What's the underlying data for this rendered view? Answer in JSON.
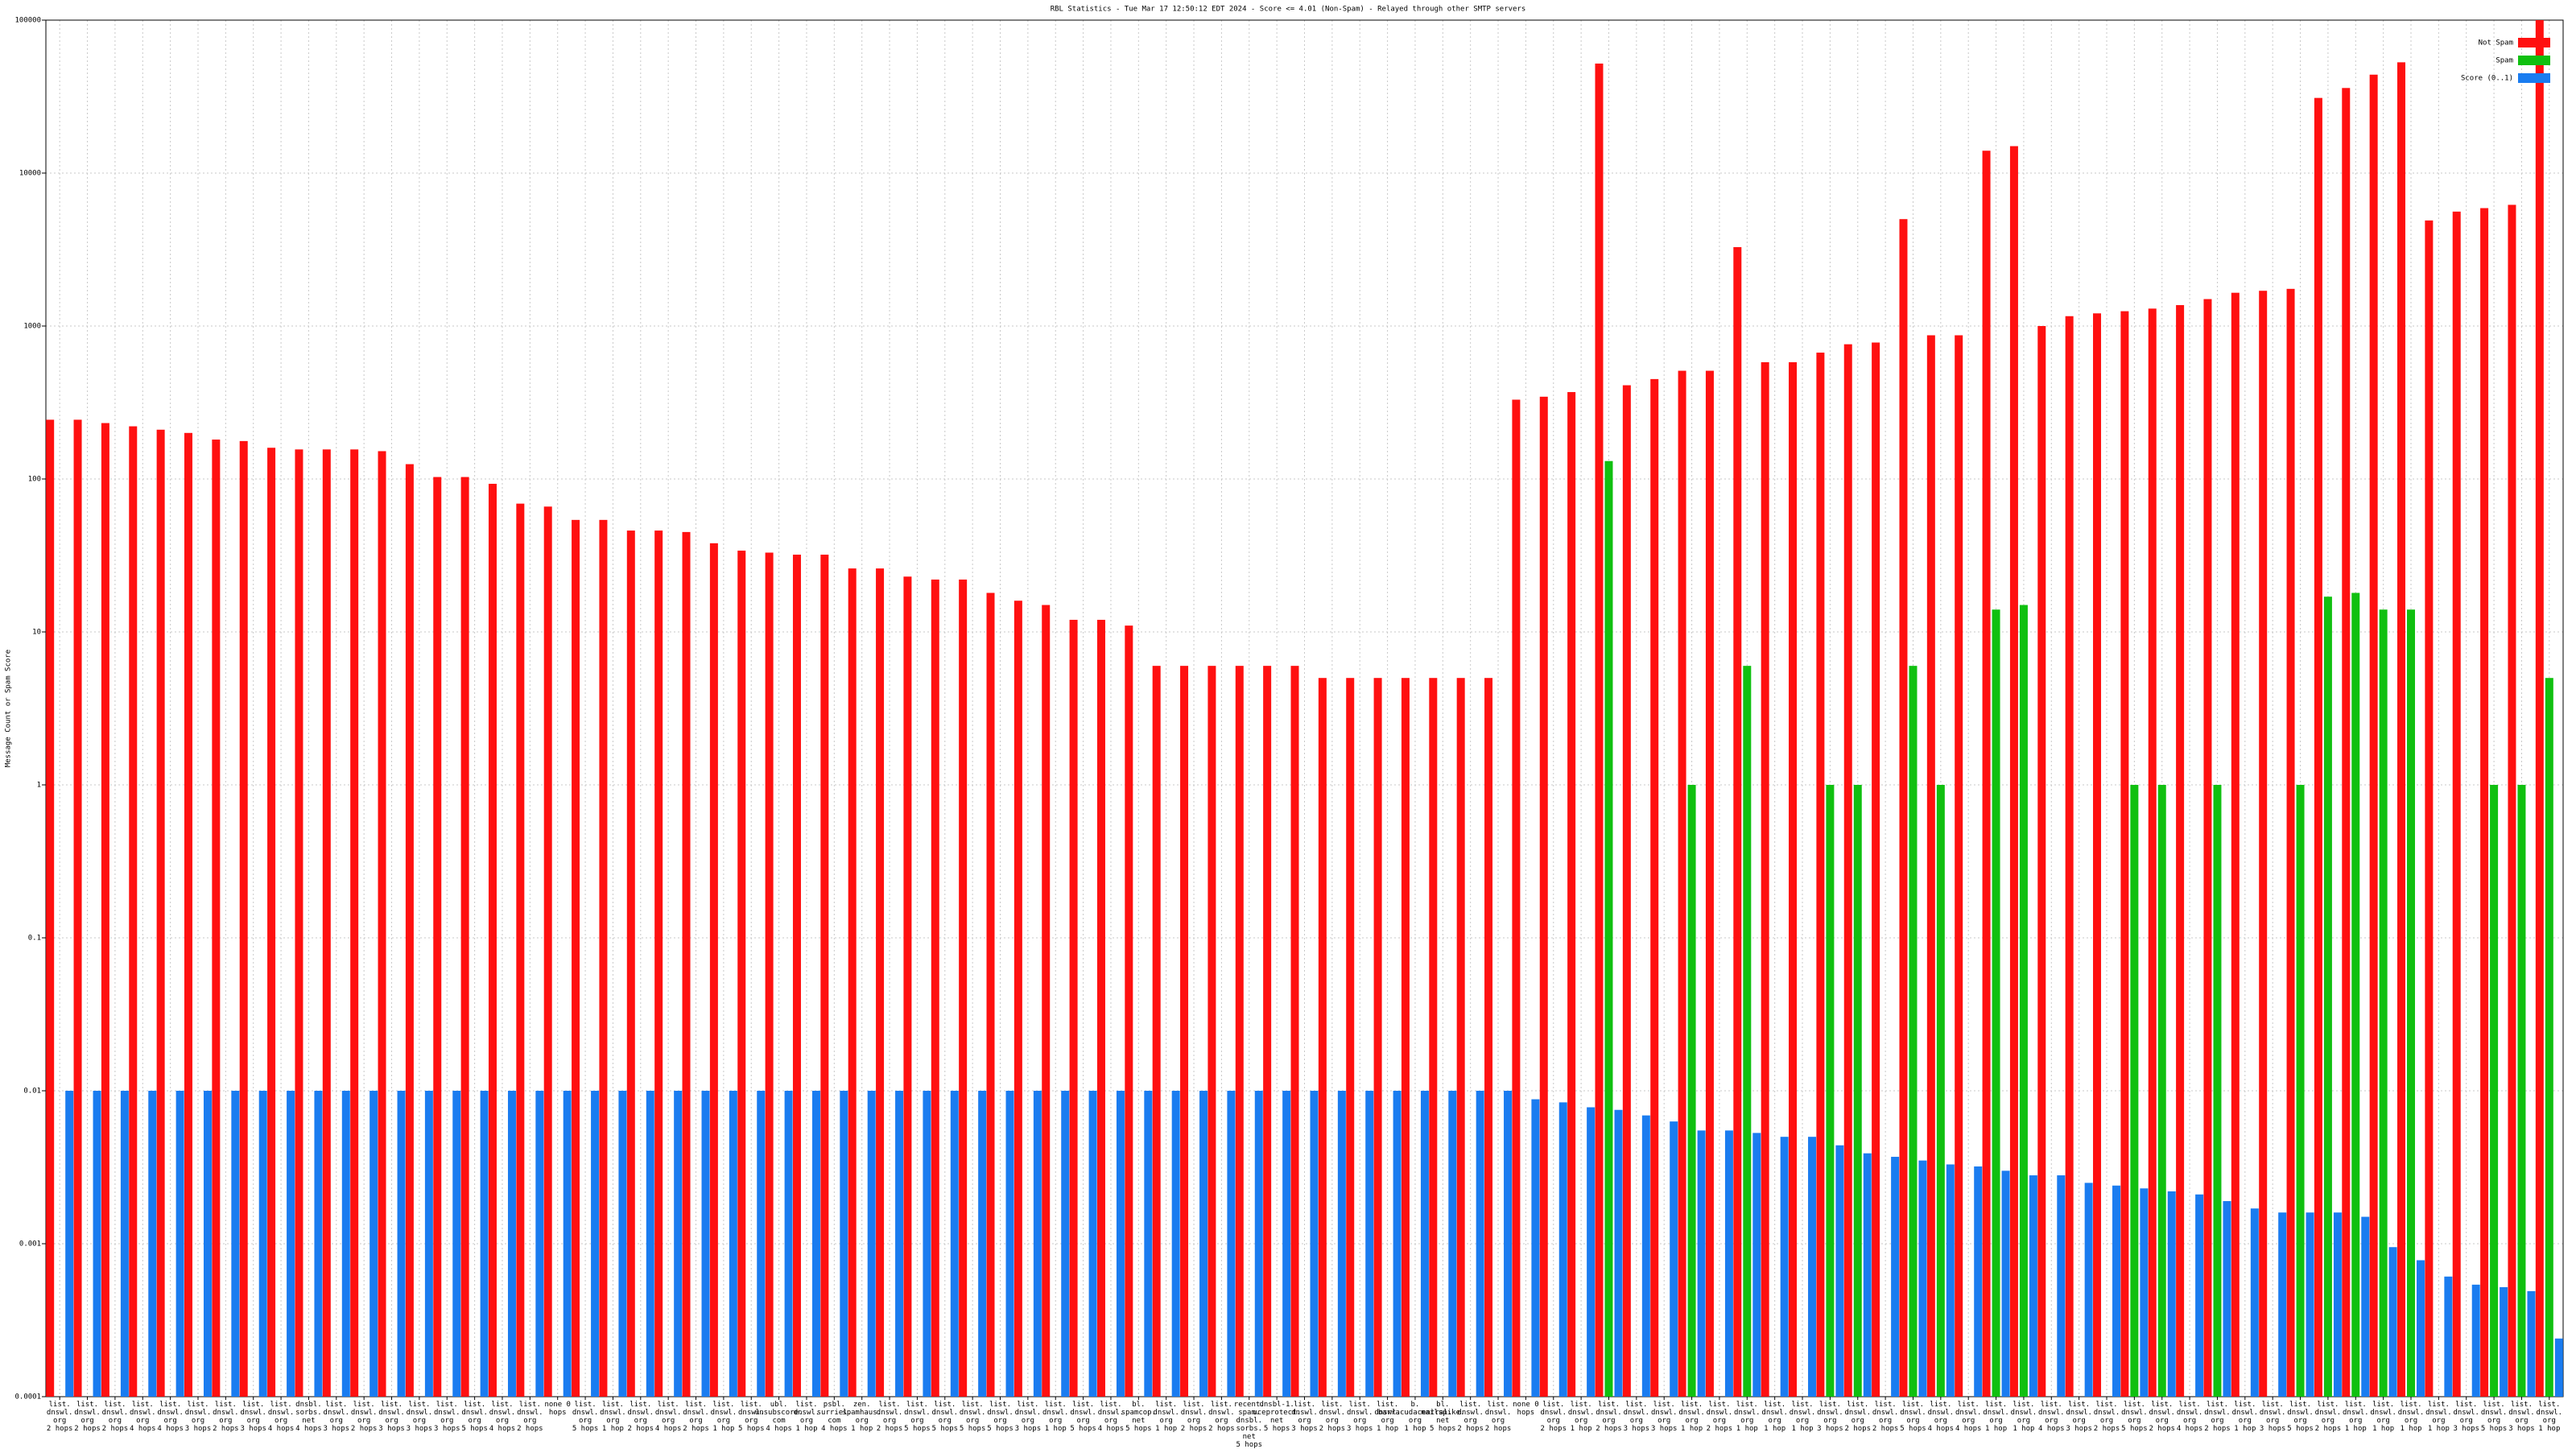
{
  "chart_data": {
    "type": "bar",
    "title": "RBL Statistics - Tue Mar 17 12:50:12 EDT 2024 - Score <= 4.01 (Non-Spam) - Relayed through other SMTP servers",
    "y_label": "Message Count or Spam Score",
    "log_scale": true,
    "grid": true,
    "legend": "top-right",
    "ylim": [
      0.0001,
      100000
    ],
    "yticks": [
      0.0001,
      0.001,
      0.01,
      0.1,
      1,
      10,
      100,
      1000,
      10000,
      100000
    ],
    "categories": [
      "list.dnswl.org 2 hops",
      "list.dnswl.org 2 hops",
      "list.dnswl.org 2 hops",
      "list.dnswl.org 4 hops",
      "list.dnswl.org 4 hops",
      "list.dnswl.org 3 hops",
      "list.dnswl.org 2 hops",
      "list.dnswl.org 3 hops",
      "list.dnswl.org 4 hops",
      "dnsbl.sorbs.net 4 hops",
      "list.dnswl.org 3 hops",
      "list.dnswl.org 2 hops",
      "list.dnswl.org 3 hops",
      "list.dnswl.org 3 hops",
      "list.dnswl.org 3 hops",
      "list.dnswl.org 5 hops",
      "list.dnswl.org 4 hops",
      "list.dnswl.org 2 hops",
      "none 0 hops",
      "list.dnswl.org 5 hops",
      "list.dnswl.org 1 hop",
      "list.dnswl.org 2 hops",
      "list.dnswl.org 4 hops",
      "list.dnswl.org 2 hops",
      "list.dnswl.org 1 hop",
      "list.dnswl.org 5 hops",
      "ubl.unsubscore.com 4 hops",
      "list.dnswl.org 1 hop",
      "psbl.surriel.com 4 hops",
      "zen.spamhaus.org 1 hop",
      "list.dnswl.org 2 hops",
      "list.dnswl.org 5 hops",
      "list.dnswl.org 5 hops",
      "list.dnswl.org 5 hops",
      "list.dnswl.org 5 hops",
      "list.dnswl.org 3 hops",
      "list.dnswl.org 1 hop",
      "list.dnswl.org 5 hops",
      "list.dnswl.org 4 hops",
      "bl.spamcop.net 5 hops",
      "list.dnswl.org 1 hop",
      "list.dnswl.org 2 hops",
      "list.dnswl.org 2 hops",
      "recent.spam.dnsbl.sorbs.net 5 hops",
      "dnsbl-1.uceprotect.net 5 hops",
      "list.dnswl.org 3 hops",
      "list.dnswl.org 2 hops",
      "list.dnswl.org 3 hops",
      "list.dnswl.org 1 hop",
      "b.barracudacentral.org 1 hop",
      "bl.mailspike.net 5 hops",
      "list.dnswl.org 2 hops",
      "list.dnswl.org 2 hops",
      "none 0 hops",
      "list.dnswl.org 2 hops",
      "list.dnswl.org 1 hop",
      "list.dnswl.org 2 hops",
      "list.dnswl.org 3 hops",
      "list.dnswl.org 3 hops",
      "list.dnswl.org 1 hop",
      "list.dnswl.org 2 hops",
      "list.dnswl.org 1 hop",
      "list.dnswl.org 1 hop",
      "list.dnswl.org 1 hop",
      "list.dnswl.org 3 hops",
      "list.dnswl.org 2 hops",
      "list.dnswl.org 2 hops",
      "list.dnswl.org 5 hops",
      "list.dnswl.org 4 hops",
      "list.dnswl.org 4 hops",
      "list.dnswl.org 1 hop",
      "list.dnswl.org 1 hop",
      "list.dnswl.org 4 hops",
      "list.dnswl.org 3 hops",
      "list.dnswl.org 2 hops",
      "list.dnswl.org 5 hops",
      "list.dnswl.org 2 hops",
      "list.dnswl.org 4 hops",
      "list.dnswl.org 2 hops",
      "list.dnswl.org 1 hop",
      "list.dnswl.org 3 hops",
      "list.dnswl.org 5 hops",
      "list.dnswl.org 2 hops",
      "list.dnswl.org 1 hop",
      "list.dnswl.org 1 hop",
      "list.dnswl.org 1 hop",
      "list.dnswl.org 1 hop",
      "list.dnswl.org 3 hops",
      "list.dnswl.org 5 hops",
      "list.dnswl.org 3 hops",
      "list.dnswl.org 1 hop"
    ],
    "series": [
      {
        "name": "Not Spam",
        "color": "#ff1010",
        "values": [
          244,
          244,
          232,
          221,
          210,
          200,
          181,
          177,
          160,
          156,
          156,
          156,
          152,
          125,
          103,
          103,
          93,
          69,
          66,
          54,
          54,
          46,
          46,
          45,
          38,
          34,
          33,
          32,
          32,
          26,
          26,
          23,
          22,
          22,
          18,
          16,
          15,
          12,
          12,
          11,
          6,
          6,
          6,
          6,
          6,
          6,
          5,
          5,
          5,
          5,
          5,
          5,
          5,
          330,
          345,
          370,
          52000,
          410,
          450,
          510,
          510,
          3280,
          580,
          580,
          670,
          760,
          780,
          5000,
          870,
          870,
          14000,
          15000,
          1000,
          1160,
          1210,
          1250,
          1300,
          1370,
          1500,
          1650,
          1700,
          1750,
          31000,
          36000,
          44000,
          53000,
          4900,
          5600,
          5900,
          6200,
          100000
        ]
      },
      {
        "name": "Spam",
        "color": "#10c010",
        "values": [
          null,
          null,
          null,
          null,
          null,
          null,
          null,
          null,
          null,
          null,
          null,
          null,
          null,
          null,
          null,
          null,
          null,
          null,
          null,
          null,
          null,
          null,
          null,
          null,
          null,
          null,
          null,
          null,
          null,
          null,
          null,
          null,
          null,
          null,
          null,
          null,
          null,
          null,
          null,
          null,
          null,
          null,
          null,
          null,
          null,
          null,
          null,
          null,
          null,
          null,
          null,
          null,
          null,
          null,
          null,
          null,
          131,
          null,
          null,
          1,
          null,
          6,
          null,
          null,
          1,
          1,
          null,
          6,
          1,
          null,
          14,
          15,
          null,
          null,
          null,
          1,
          1,
          null,
          1,
          null,
          null,
          1,
          17,
          18,
          14,
          14,
          null,
          null,
          1,
          1,
          5
        ]
      },
      {
        "name": "Score (0..1)",
        "color": "#1a7cf0",
        "values": [
          0.01,
          0.01,
          0.01,
          0.01,
          0.01,
          0.01,
          0.01,
          0.01,
          0.01,
          0.01,
          0.01,
          0.01,
          0.01,
          0.01,
          0.01,
          0.01,
          0.01,
          0.01,
          0.01,
          0.01,
          0.01,
          0.01,
          0.01,
          0.01,
          0.01,
          0.01,
          0.01,
          0.01,
          0.01,
          0.01,
          0.01,
          0.01,
          0.01,
          0.01,
          0.01,
          0.01,
          0.01,
          0.01,
          0.01,
          0.01,
          0.01,
          0.01,
          0.01,
          0.01,
          0.01,
          0.01,
          0.01,
          0.01,
          0.01,
          0.01,
          0.01,
          0.01,
          0.01,
          0.0088,
          0.0084,
          0.0078,
          0.0075,
          0.0069,
          0.0063,
          0.0055,
          0.0055,
          0.0053,
          0.005,
          0.005,
          0.0044,
          0.0039,
          0.0037,
          0.0035,
          0.0033,
          0.0032,
          0.003,
          0.0028,
          0.0028,
          0.0025,
          0.0024,
          0.0023,
          0.0022,
          0.0021,
          0.0019,
          0.0017,
          0.0016,
          0.0016,
          0.0016,
          0.0015,
          0.00095,
          0.00078,
          0.00061,
          0.00054,
          0.00052,
          0.00049,
          0.00024
        ]
      }
    ]
  }
}
